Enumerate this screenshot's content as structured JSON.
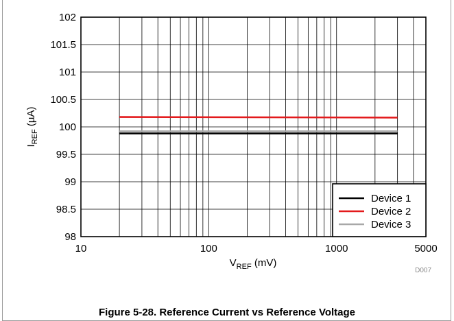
{
  "chart_data": {
    "type": "line",
    "x_scale": "log",
    "xlim": [
      10,
      5000
    ],
    "ylim": [
      98,
      102
    ],
    "grid": true,
    "ylabel": {
      "main": "I",
      "sub": "REF",
      "unit": " (µA)"
    },
    "xlabel": {
      "main": "V",
      "sub": "REF",
      "unit": " (mV)"
    },
    "x_ticks": [
      10,
      100,
      1000,
      5000
    ],
    "x_tick_labels": [
      "10",
      "100",
      "1000",
      "5000"
    ],
    "y_ticks": [
      98,
      98.5,
      99,
      99.5,
      100,
      100.5,
      101,
      101.5,
      102
    ],
    "y_tick_labels": [
      "98",
      "98.5",
      "99",
      "99.5",
      "100",
      "100.5",
      "101",
      "101.5",
      "102"
    ],
    "legend_position": "bottom-right",
    "series": [
      {
        "name": "Device 1",
        "color": "#000000",
        "x": [
          20,
          3000
        ],
        "y": [
          99.88,
          99.88
        ]
      },
      {
        "name": "Device 2",
        "color": "#e31a1c",
        "x": [
          20,
          3000
        ],
        "y": [
          100.18,
          100.17
        ]
      },
      {
        "name": "Device 3",
        "color": "#a8a8a8",
        "x": [
          20,
          3000
        ],
        "y": [
          99.92,
          99.92
        ]
      }
    ],
    "figure_id": "D007"
  },
  "caption": "Figure 5-28. Reference Current vs Reference Voltage"
}
